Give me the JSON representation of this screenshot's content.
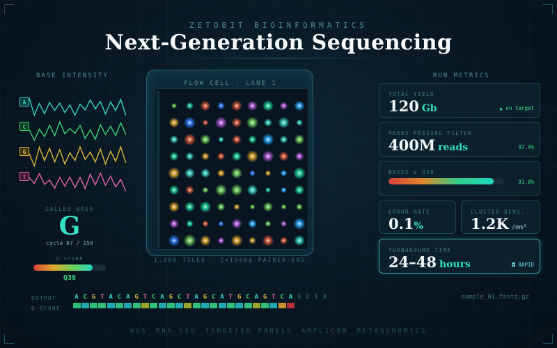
{
  "header": {
    "brand": "ZETOBIT BIOINFORMATICS",
    "title": "Next-Generation Sequencing"
  },
  "base_intensity": {
    "label": "BASE INTENSITY",
    "channels": [
      {
        "base": "A",
        "color": "#3ad6c4",
        "badge_bg": "#0e3d3f"
      },
      {
        "base": "C",
        "color": "#3fd074",
        "badge_bg": "#113d24"
      },
      {
        "base": "G",
        "color": "#e0b83a",
        "badge_bg": "#3d3314"
      },
      {
        "base": "T",
        "color": "#e066a4",
        "badge_bg": "#3d1a2e"
      }
    ],
    "called_base_label": "CALLED BASE",
    "called_base": "G",
    "cycle": "cycle 87 / 150",
    "qscore_label": "Q-SCORE",
    "qscore_fraction": 0.82,
    "qscore_value": "Q38"
  },
  "flow_cell": {
    "header": "FLOW CELL · LANE 1",
    "caption": "1,200 TILES · 2×150bp PAIRED-END"
  },
  "run_metrics": {
    "label": "RUN METRICS",
    "total_yield": {
      "label": "TOTAL YIELD",
      "value": "120",
      "unit": "Gb",
      "note": "▲ on target"
    },
    "reads_pf": {
      "label": "READS PASSING FILTER",
      "value": "400M",
      "unit": "reads",
      "note": "97.4%"
    },
    "bases_q30": {
      "label": "BASES ≥ Q30",
      "fraction": 0.918,
      "note": "91.8%"
    },
    "error_rate": {
      "label": "ERROR RATE",
      "value": "0.1",
      "unit": "%"
    },
    "cluster_density": {
      "label": "CLUSTER DENS.",
      "value": "1.2K",
      "unit": "/mm²"
    },
    "turnaround": {
      "label": "TURNAROUND TIME",
      "value": "24–48",
      "unit": "hours",
      "note": "◘ RAPID"
    }
  },
  "sequence": {
    "output_label": "OUTPUT",
    "qscore_label": "Q-SCORE",
    "bases": [
      "A",
      "C",
      "G",
      "T",
      "A",
      "C",
      "A",
      "G",
      "T",
      "C",
      "A",
      "G",
      "C",
      "T",
      "A",
      "G",
      "C",
      "A",
      "T",
      "G",
      "C",
      "A",
      "G",
      "T",
      "C",
      "A",
      "G",
      "C",
      "T",
      "A"
    ],
    "qscores": [
      38,
      36,
      38,
      37,
      35,
      38,
      36,
      37,
      30,
      38,
      36,
      37,
      35,
      30,
      38,
      36,
      37,
      35,
      38,
      36,
      37,
      30,
      38,
      36,
      25,
      18,
      null,
      null,
      null,
      null
    ],
    "file": "sample_01.fastq.gz"
  },
  "footer": [
    "WGS",
    "RNA-SEQ",
    "TARGETED PANELS",
    "AMPLICON",
    "METAGENOMICS"
  ],
  "colors": {
    "A": "#3ad6c4",
    "C": "#3fd074",
    "G": "#e0b83a",
    "T": "#e066a4",
    "accent": "#36e0c2"
  }
}
